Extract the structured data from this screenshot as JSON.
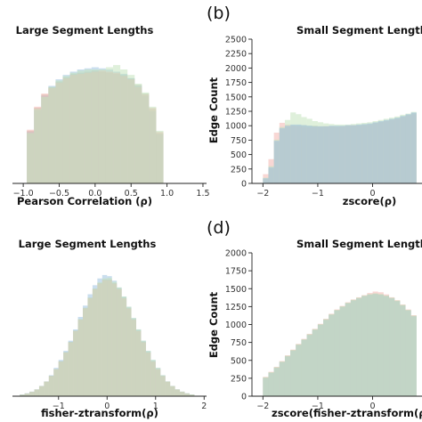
{
  "chart_data": [
    {
      "type": "histogram",
      "title": "Large Segment Lengths",
      "xlabel": "Pearson Correlation (ρ)",
      "ylabel": "",
      "xlim": [
        -1.15,
        1.55
      ],
      "ylim": [
        0,
        1300
      ],
      "xticks": [
        -1.0,
        -0.5,
        0.0,
        0.5,
        1.0,
        1.5
      ],
      "xtick_labels": [
        "−1.0",
        "−0.5",
        "0.0",
        "0.5",
        "1.0",
        "1.5"
      ],
      "yticks": [],
      "bin_edges": [
        -0.95,
        -0.85,
        -0.75,
        -0.65,
        -0.55,
        -0.45,
        -0.35,
        -0.25,
        -0.15,
        -0.05,
        0.05,
        0.15,
        0.25,
        0.35,
        0.45,
        0.55,
        0.65,
        0.75,
        0.85,
        0.95
      ],
      "series": [
        {
          "color": "#bcb8a6",
          "values": [
            480,
            690,
            810,
            880,
            930,
            970,
            1000,
            1010,
            1020,
            1030,
            1020,
            1010,
            1000,
            990,
            960,
            900,
            820,
            680,
            460
          ]
        },
        {
          "color": "#9fc3e0",
          "values": [
            470,
            670,
            800,
            890,
            950,
            990,
            1020,
            1040,
            1050,
            1060,
            1050,
            1040,
            1020,
            1000,
            960,
            890,
            800,
            660,
            450
          ]
        },
        {
          "color": "#f2b7b0",
          "values": [
            490,
            700,
            820,
            870,
            920,
            960,
            990,
            1000,
            1010,
            1020,
            1030,
            1020,
            1010,
            980,
            950,
            880,
            810,
            690,
            470
          ]
        },
        {
          "color": "#c4e3bd",
          "values": [
            460,
            680,
            790,
            880,
            940,
            980,
            1010,
            1030,
            1040,
            1040,
            1040,
            1060,
            1080,
            1040,
            990,
            910,
            830,
            700,
            480
          ]
        }
      ]
    },
    {
      "type": "histogram",
      "panel_label": "(b)",
      "title": "Small Segment Lengths",
      "xlabel": "zscore(ρ)",
      "ylabel": "Edge Count",
      "xlim": [
        -2.2,
        0.9
      ],
      "ylim": [
        0,
        2500
      ],
      "xticks": [
        -2,
        -1,
        0
      ],
      "xtick_labels": [
        "−2",
        "−1",
        "0"
      ],
      "yticks": [
        0,
        250,
        500,
        750,
        1000,
        1250,
        1500,
        1750,
        2000,
        2250,
        2500
      ],
      "bin_edges": [
        -2.0,
        -1.9,
        -1.8,
        -1.7,
        -1.6,
        -1.5,
        -1.4,
        -1.3,
        -1.2,
        -1.1,
        -1.0,
        -0.9,
        -0.8,
        -0.7,
        -0.6,
        -0.5,
        -0.4,
        -0.3,
        -0.2,
        -0.1,
        0.0,
        0.1,
        0.2,
        0.3,
        0.4,
        0.5,
        0.6,
        0.7,
        0.8
      ],
      "series": [
        {
          "color": "#bcb8a6",
          "values": [
            80,
            260,
            720,
            950,
            990,
            1010,
            1010,
            1010,
            1000,
            1000,
            990,
            990,
            990,
            990,
            990,
            1000,
            1000,
            1010,
            1020,
            1030,
            1050,
            1070,
            1090,
            1110,
            1130,
            1160,
            1190,
            1220
          ]
        },
        {
          "color": "#f2b7b0",
          "values": [
            160,
            420,
            880,
            1050,
            1020,
            1000,
            990,
            980,
            970,
            980,
            980,
            990,
            990,
            980,
            990,
            1000,
            1010,
            1000,
            1010,
            1020,
            1040,
            1060,
            1080,
            1100,
            1120,
            1150,
            1180,
            1200
          ]
        },
        {
          "color": "#c4e3bd",
          "values": [
            100,
            300,
            760,
            980,
            1100,
            1230,
            1200,
            1150,
            1120,
            1080,
            1060,
            1040,
            1030,
            1020,
            1020,
            1020,
            1030,
            1040,
            1050,
            1060,
            1080,
            1100,
            1120,
            1140,
            1160,
            1190,
            1210,
            1240
          ]
        },
        {
          "color": "#9fc3e0",
          "values": [
            90,
            280,
            740,
            960,
            1000,
            1020,
            1020,
            1010,
            1000,
            990,
            990,
            990,
            1000,
            1000,
            1000,
            1010,
            1010,
            1020,
            1030,
            1040,
            1060,
            1080,
            1100,
            1120,
            1140,
            1170,
            1200,
            1230
          ]
        }
      ]
    },
    {
      "type": "histogram",
      "title": "Large Segment Lengths",
      "xlabel": "fisher-ztransform(ρ)",
      "ylabel": "",
      "xlim": [
        -1.95,
        2.05
      ],
      "ylim": [
        0,
        1250
      ],
      "xticks": [
        -1,
        0,
        1,
        2
      ],
      "xtick_labels": [
        "−1",
        "0",
        "1",
        "2"
      ],
      "yticks": [],
      "bin_edges": [
        -1.8,
        -1.7,
        -1.6,
        -1.5,
        -1.4,
        -1.3,
        -1.2,
        -1.1,
        -1.0,
        -0.9,
        -0.8,
        -0.7,
        -0.6,
        -0.5,
        -0.4,
        -0.3,
        -0.2,
        -0.1,
        0.0,
        0.1,
        0.2,
        0.3,
        0.4,
        0.5,
        0.6,
        0.7,
        0.8,
        0.9,
        1.0,
        1.1,
        1.2,
        1.3,
        1.4,
        1.5,
        1.6,
        1.7,
        1.8
      ],
      "series": [
        {
          "color": "#bcb8a6",
          "values": [
            15,
            25,
            40,
            60,
            90,
            130,
            180,
            240,
            310,
            390,
            480,
            580,
            680,
            780,
            870,
            950,
            1000,
            1030,
            1030,
            1000,
            950,
            870,
            780,
            680,
            580,
            480,
            390,
            310,
            240,
            180,
            130,
            90,
            60,
            40,
            25,
            15
          ]
        },
        {
          "color": "#9fc3e0",
          "values": [
            15,
            25,
            40,
            60,
            90,
            130,
            185,
            250,
            320,
            400,
            490,
            590,
            700,
            800,
            900,
            980,
            1040,
            1070,
            1060,
            1020,
            960,
            880,
            790,
            690,
            590,
            490,
            400,
            320,
            250,
            185,
            130,
            90,
            60,
            40,
            25,
            15
          ]
        },
        {
          "color": "#f2b7b0",
          "values": [
            12,
            22,
            38,
            58,
            88,
            128,
            178,
            238,
            305,
            385,
            475,
            575,
            675,
            775,
            865,
            945,
            995,
            1025,
            1025,
            995,
            945,
            865,
            775,
            675,
            575,
            475,
            385,
            305,
            238,
            178,
            128,
            88,
            58,
            38,
            22,
            12
          ]
        },
        {
          "color": "#c4e3bd",
          "values": [
            14,
            24,
            39,
            59,
            89,
            129,
            179,
            239,
            308,
            388,
            478,
            578,
            680,
            780,
            870,
            950,
            1005,
            1040,
            1045,
            1010,
            960,
            880,
            790,
            690,
            590,
            490,
            400,
            320,
            250,
            185,
            130,
            90,
            60,
            40,
            25,
            15
          ]
        }
      ]
    },
    {
      "type": "histogram",
      "panel_label": "(d)",
      "title": "Small Segment Lengths",
      "xlabel": "zscore(fisher-ztransform(ρ))",
      "ylabel": "Edge Count",
      "xlim": [
        -2.2,
        0.9
      ],
      "ylim": [
        0,
        2000
      ],
      "xticks": [
        -2,
        -1,
        0
      ],
      "xtick_labels": [
        "−2",
        "−1",
        "0"
      ],
      "yticks": [
        0,
        250,
        500,
        750,
        1000,
        1250,
        1500,
        1750,
        2000
      ],
      "bin_edges": [
        -2.0,
        -1.9,
        -1.8,
        -1.7,
        -1.6,
        -1.5,
        -1.4,
        -1.3,
        -1.2,
        -1.1,
        -1.0,
        -0.9,
        -0.8,
        -0.7,
        -0.6,
        -0.5,
        -0.4,
        -0.3,
        -0.2,
        -0.1,
        0.0,
        0.1,
        0.2,
        0.3,
        0.4,
        0.5,
        0.6,
        0.7,
        0.8
      ],
      "series": [
        {
          "color": "#bcb8a6",
          "values": [
            260,
            330,
            400,
            480,
            560,
            640,
            720,
            790,
            860,
            930,
            1000,
            1070,
            1140,
            1200,
            1250,
            1300,
            1340,
            1370,
            1400,
            1420,
            1430,
            1420,
            1400,
            1370,
            1330,
            1270,
            1200,
            1120
          ]
        },
        {
          "color": "#f2b7b0",
          "values": [
            270,
            340,
            410,
            490,
            570,
            650,
            730,
            800,
            870,
            940,
            1010,
            1080,
            1150,
            1210,
            1260,
            1310,
            1350,
            1380,
            1410,
            1440,
            1460,
            1450,
            1420,
            1380,
            1340,
            1280,
            1210,
            1130
          ]
        },
        {
          "color": "#9fc3e0",
          "values": [
            255,
            325,
            395,
            475,
            555,
            635,
            715,
            785,
            855,
            925,
            995,
            1065,
            1135,
            1195,
            1245,
            1295,
            1335,
            1365,
            1395,
            1415,
            1425,
            1415,
            1395,
            1365,
            1325,
            1265,
            1195,
            1115
          ]
        },
        {
          "color": "#c4e3bd",
          "values": [
            265,
            335,
            405,
            485,
            565,
            645,
            725,
            795,
            865,
            935,
            1005,
            1075,
            1145,
            1205,
            1255,
            1305,
            1345,
            1375,
            1405,
            1425,
            1435,
            1425,
            1405,
            1375,
            1335,
            1275,
            1205,
            1125
          ]
        }
      ]
    }
  ]
}
